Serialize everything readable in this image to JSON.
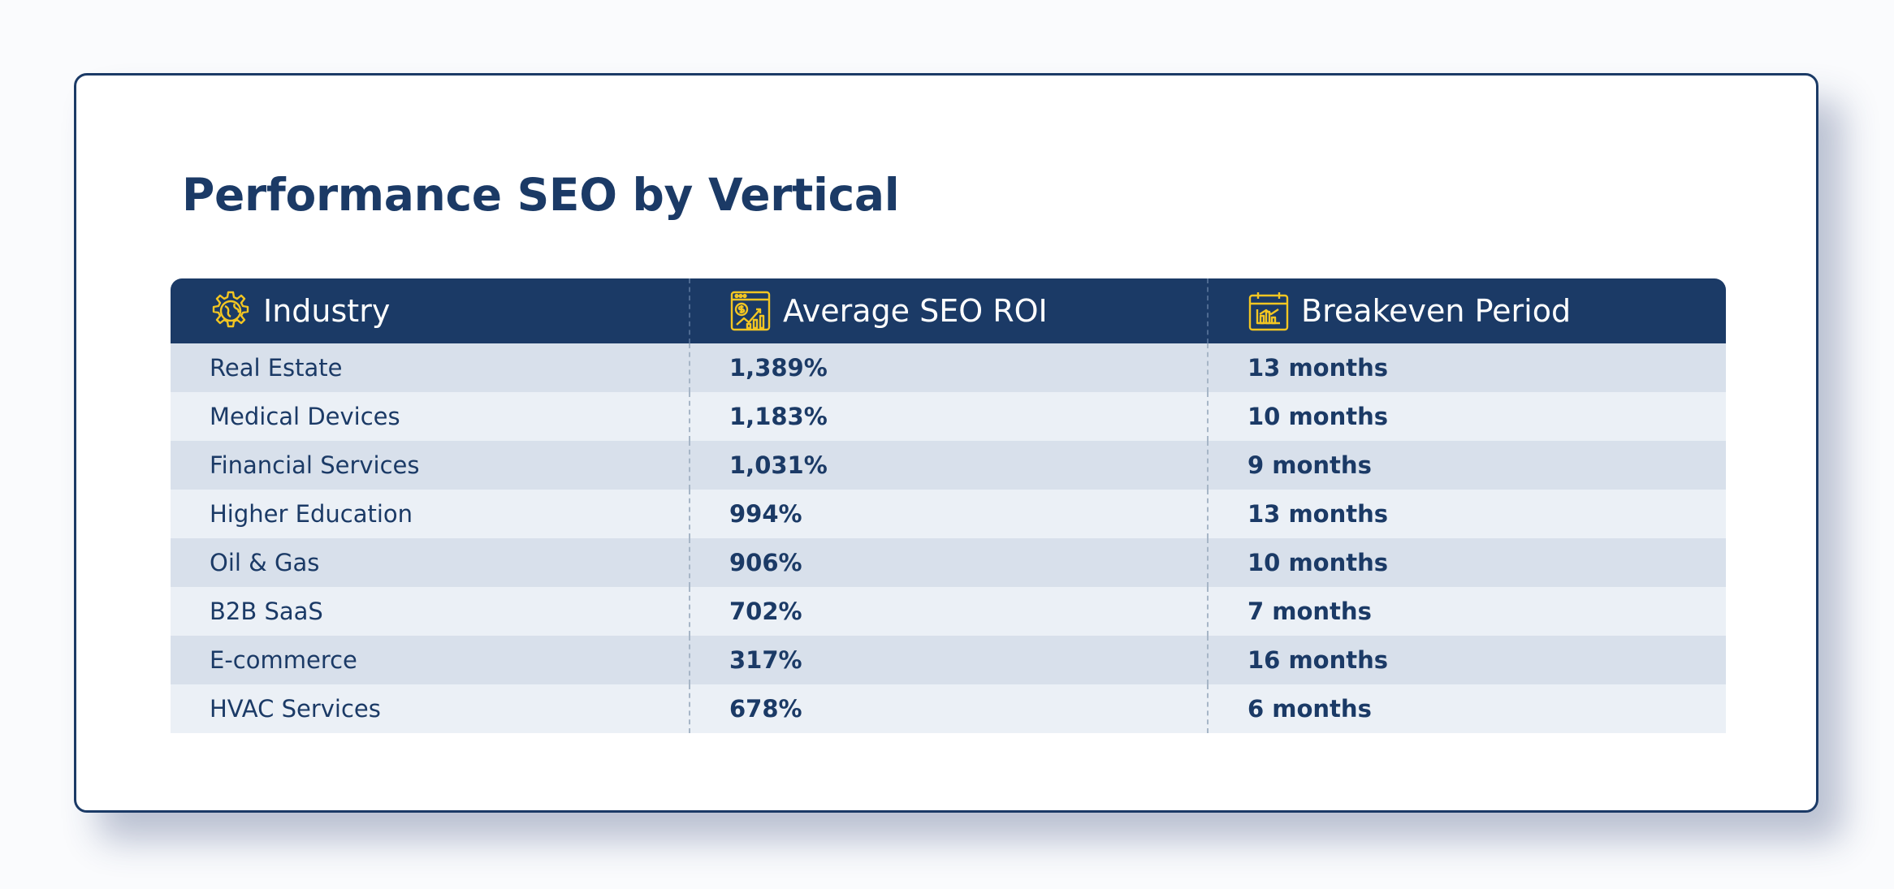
{
  "title": "Performance SEO by Vertical",
  "colors": {
    "navy": "#1b3a66",
    "gold": "#f3c622",
    "row_dark": "#d8e0eb",
    "row_light": "#ebf0f6"
  },
  "table": {
    "columns": [
      {
        "label": "Industry",
        "icon": "gear-globe-icon"
      },
      {
        "label": "Average SEO ROI",
        "icon": "dollar-chart-icon"
      },
      {
        "label": "Breakeven Period",
        "icon": "calendar-chart-icon"
      }
    ],
    "rows": [
      {
        "industry": "Real Estate",
        "roi": "1,389%",
        "breakeven": "13 months"
      },
      {
        "industry": "Medical Devices",
        "roi": "1,183%",
        "breakeven": "10 months"
      },
      {
        "industry": "Financial Services",
        "roi": "1,031%",
        "breakeven": "9 months"
      },
      {
        "industry": "Higher Education",
        "roi": "994%",
        "breakeven": "13 months"
      },
      {
        "industry": "Oil & Gas",
        "roi": "906%",
        "breakeven": "10 months"
      },
      {
        "industry": "B2B SaaS",
        "roi": "702%",
        "breakeven": "7 months"
      },
      {
        "industry": "E-commerce",
        "roi": "317%",
        "breakeven": "16 months"
      },
      {
        "industry": "HVAC Services",
        "roi": "678%",
        "breakeven": "6 months"
      }
    ]
  }
}
